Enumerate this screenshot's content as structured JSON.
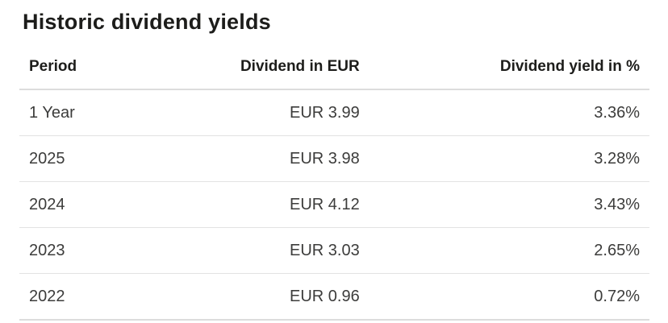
{
  "chart_data": {
    "type": "table",
    "title": "Historic dividend yields",
    "columns": [
      "Period",
      "Dividend in EUR",
      "Dividend yield in %"
    ],
    "rows": [
      [
        "1 Year",
        "EUR 3.99",
        "3.36%"
      ],
      [
        "2025",
        "EUR 3.98",
        "3.28%"
      ],
      [
        "2024",
        "EUR 4.12",
        "3.43%"
      ],
      [
        "2023",
        "EUR 3.03",
        "2.65%"
      ],
      [
        "2022",
        "EUR 0.96",
        "0.72%"
      ]
    ],
    "numeric": {
      "periods": [
        "1 Year",
        "2025",
        "2024",
        "2023",
        "2022"
      ],
      "dividend_eur": [
        3.99,
        3.98,
        4.12,
        3.03,
        0.96
      ],
      "dividend_yield_pct": [
        3.36,
        3.28,
        3.43,
        2.65,
        0.72
      ],
      "currency": "EUR"
    },
    "layout": {
      "column_align": [
        "left",
        "right",
        "right"
      ],
      "grid": "horizontal-separators-only"
    }
  },
  "colors": {
    "background": "#ffffff",
    "title_text": "#1d1d1b",
    "header_text": "#1d1d1b",
    "cell_text": "#3c3c3b",
    "row_border": "#e2e2e2",
    "header_border": "#dcdcdc"
  }
}
